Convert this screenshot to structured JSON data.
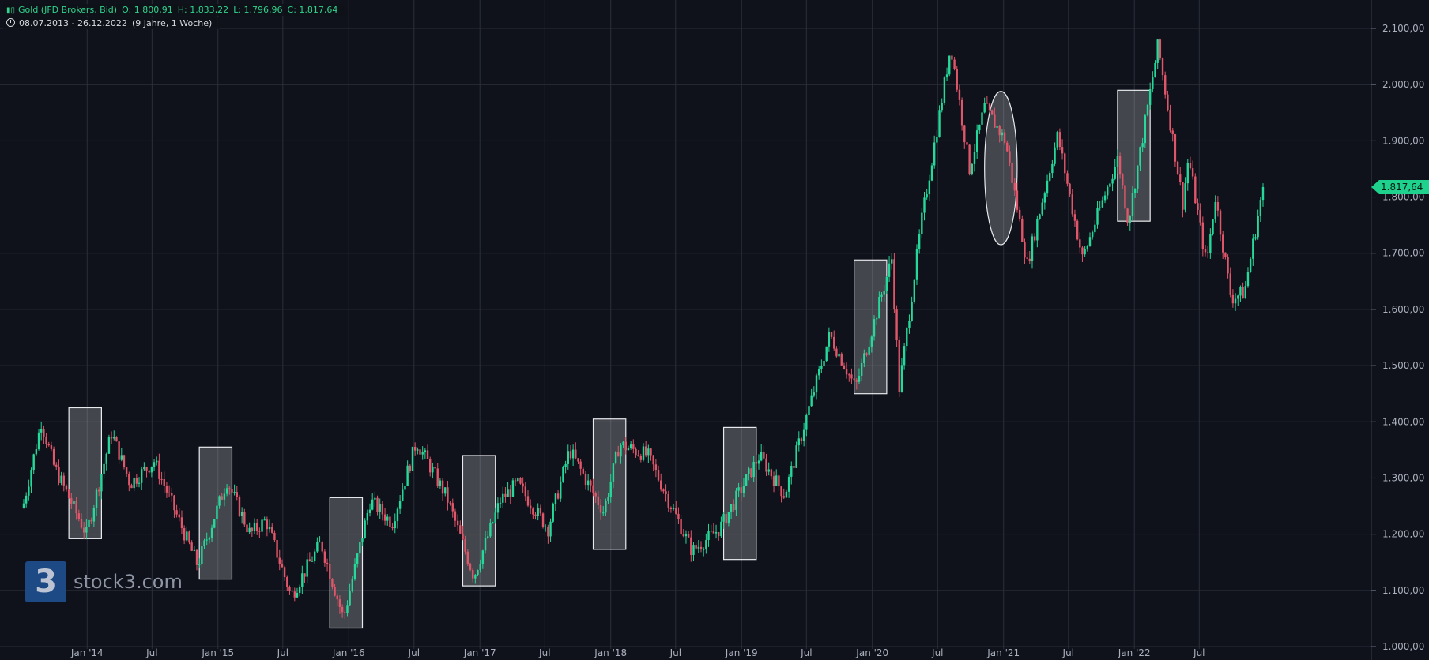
{
  "header": {
    "instrument": "Gold (JFD Brokers, Bid)",
    "open": "O: 1.800,91",
    "high": "H: 1.833,22",
    "low": "L: 1.796,96",
    "close": "C: 1.817,64",
    "range": "08.07.2013 - 26.12.2022",
    "period": "(9 Jahre, 1 Woche)"
  },
  "logo": {
    "mark": "3",
    "text": "stock3.com"
  },
  "colors": {
    "up": "#26d99a",
    "down": "#e0566a",
    "background": "#0f121a",
    "grid": "#2a2f3a",
    "last_price_bg": "#1ed18c"
  },
  "chart_data": {
    "type": "candlestick",
    "x_range": [
      "2013-07-08",
      "2022-12-26"
    ],
    "y_range": [
      1000,
      2100
    ],
    "y_ticks": [
      "1.000,00",
      "1.100,00",
      "1.200,00",
      "1.300,00",
      "1.400,00",
      "1.500,00",
      "1.600,00",
      "1.700,00",
      "1.800,00",
      "1.900,00",
      "2.000,00",
      "2.100,00"
    ],
    "y_tick_values": [
      1000,
      1100,
      1200,
      1300,
      1400,
      1500,
      1600,
      1700,
      1800,
      1900,
      2000,
      2100
    ],
    "x_ticks": [
      {
        "label": "Jan '14",
        "date": "2014-01-01"
      },
      {
        "label": "Jul",
        "date": "2014-07-01"
      },
      {
        "label": "Jan '15",
        "date": "2015-01-01"
      },
      {
        "label": "Jul",
        "date": "2015-07-01"
      },
      {
        "label": "Jan '16",
        "date": "2016-01-01"
      },
      {
        "label": "Jul",
        "date": "2016-07-01"
      },
      {
        "label": "Jan '17",
        "date": "2017-01-01"
      },
      {
        "label": "Jul",
        "date": "2017-07-01"
      },
      {
        "label": "Jan '18",
        "date": "2018-01-01"
      },
      {
        "label": "Jul",
        "date": "2018-07-01"
      },
      {
        "label": "Jan '19",
        "date": "2019-01-01"
      },
      {
        "label": "Jul",
        "date": "2019-07-01"
      },
      {
        "label": "Jan '20",
        "date": "2020-01-01"
      },
      {
        "label": "Jul",
        "date": "2020-07-01"
      },
      {
        "label": "Jan '21",
        "date": "2021-01-01"
      },
      {
        "label": "Jul",
        "date": "2021-07-01"
      },
      {
        "label": "Jan '22",
        "date": "2022-01-01"
      },
      {
        "label": "Jul",
        "date": "2022-07-01"
      }
    ],
    "last_price": {
      "label": "1.817,64",
      "value": 1817.64
    },
    "price_path": [
      {
        "date": "2013-07-08",
        "price": 1255
      },
      {
        "date": "2013-08-26",
        "price": 1400
      },
      {
        "date": "2013-10-01",
        "price": 1320
      },
      {
        "date": "2013-12-30",
        "price": 1200
      },
      {
        "date": "2014-03-10",
        "price": 1380
      },
      {
        "date": "2014-05-01",
        "price": 1290
      },
      {
        "date": "2014-07-07",
        "price": 1330
      },
      {
        "date": "2014-11-05",
        "price": 1145
      },
      {
        "date": "2015-01-26",
        "price": 1295
      },
      {
        "date": "2015-04-01",
        "price": 1200
      },
      {
        "date": "2015-05-15",
        "price": 1225
      },
      {
        "date": "2015-07-24",
        "price": 1090
      },
      {
        "date": "2015-10-15",
        "price": 1185
      },
      {
        "date": "2015-12-17",
        "price": 1050
      },
      {
        "date": "2016-03-01",
        "price": 1260
      },
      {
        "date": "2016-05-01",
        "price": 1220
      },
      {
        "date": "2016-07-08",
        "price": 1365
      },
      {
        "date": "2016-10-01",
        "price": 1265
      },
      {
        "date": "2016-12-15",
        "price": 1125
      },
      {
        "date": "2017-02-27",
        "price": 1260
      },
      {
        "date": "2017-04-15",
        "price": 1290
      },
      {
        "date": "2017-07-10",
        "price": 1210
      },
      {
        "date": "2017-09-08",
        "price": 1350
      },
      {
        "date": "2017-12-12",
        "price": 1240
      },
      {
        "date": "2018-01-25",
        "price": 1360
      },
      {
        "date": "2018-04-15",
        "price": 1340
      },
      {
        "date": "2018-08-16",
        "price": 1170
      },
      {
        "date": "2018-11-01",
        "price": 1210
      },
      {
        "date": "2019-02-20",
        "price": 1340
      },
      {
        "date": "2019-05-01",
        "price": 1270
      },
      {
        "date": "2019-09-04",
        "price": 1555
      },
      {
        "date": "2019-11-15",
        "price": 1460
      },
      {
        "date": "2020-02-24",
        "price": 1690
      },
      {
        "date": "2020-03-16",
        "price": 1460
      },
      {
        "date": "2020-05-18",
        "price": 1760
      },
      {
        "date": "2020-08-07",
        "price": 2070
      },
      {
        "date": "2020-09-28",
        "price": 1850
      },
      {
        "date": "2020-11-09",
        "price": 1960
      },
      {
        "date": "2021-01-06",
        "price": 1900
      },
      {
        "date": "2021-03-08",
        "price": 1680
      },
      {
        "date": "2021-06-01",
        "price": 1910
      },
      {
        "date": "2021-08-09",
        "price": 1690
      },
      {
        "date": "2021-11-16",
        "price": 1870
      },
      {
        "date": "2021-12-15",
        "price": 1755
      },
      {
        "date": "2022-03-08",
        "price": 2070
      },
      {
        "date": "2022-05-16",
        "price": 1790
      },
      {
        "date": "2022-06-01",
        "price": 1870
      },
      {
        "date": "2022-07-21",
        "price": 1680
      },
      {
        "date": "2022-08-15",
        "price": 1800
      },
      {
        "date": "2022-09-28",
        "price": 1620
      },
      {
        "date": "2022-11-04",
        "price": 1630
      },
      {
        "date": "2022-12-26",
        "price": 1817.64
      }
    ],
    "annotations": [
      {
        "shape": "rect",
        "x0": "2013-11-11",
        "x1": "2014-02-10",
        "y0": 1192,
        "y1": 1425
      },
      {
        "shape": "rect",
        "x0": "2014-11-10",
        "x1": "2015-02-09",
        "y0": 1120,
        "y1": 1355
      },
      {
        "shape": "rect",
        "x0": "2015-11-09",
        "x1": "2016-02-08",
        "y0": 1033,
        "y1": 1265
      },
      {
        "shape": "rect",
        "x0": "2016-11-14",
        "x1": "2017-02-13",
        "y0": 1108,
        "y1": 1340
      },
      {
        "shape": "rect",
        "x0": "2017-11-13",
        "x1": "2018-02-12",
        "y0": 1173,
        "y1": 1405
      },
      {
        "shape": "rect",
        "x0": "2018-11-12",
        "x1": "2019-02-11",
        "y0": 1155,
        "y1": 1390
      },
      {
        "shape": "rect",
        "x0": "2019-11-11",
        "x1": "2020-02-10",
        "y0": 1450,
        "y1": 1688
      },
      {
        "shape": "ellipse",
        "x0": "2020-11-09",
        "x1": "2021-02-08",
        "y0": 1715,
        "y1": 1988
      },
      {
        "shape": "rect",
        "x0": "2021-11-15",
        "x1": "2022-02-14",
        "y0": 1757,
        "y1": 1990
      }
    ]
  }
}
